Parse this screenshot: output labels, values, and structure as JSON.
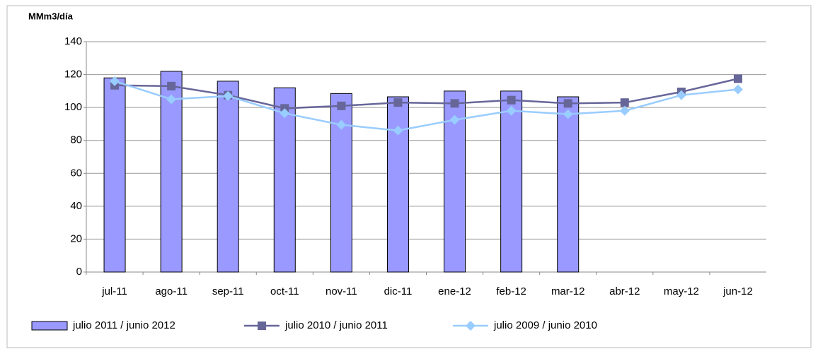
{
  "chart_data": {
    "type": "bar",
    "y_label": "MMm3/día",
    "categories": [
      "jul-11",
      "ago-11",
      "sep-11",
      "oct-11",
      "nov-11",
      "dic-11",
      "ene-12",
      "feb-12",
      "mar-12",
      "abr-12",
      "may-12",
      "jun-12"
    ],
    "series": [
      {
        "name": "julio 2011 / junio 2012",
        "type": "bar",
        "color": "#9999ff",
        "values": [
          118,
          122,
          116,
          112,
          108.5,
          106.5,
          110,
          110,
          106.5,
          null,
          null,
          null
        ]
      },
      {
        "name": "julio 2010 / junio 2011",
        "type": "line",
        "marker": "square",
        "color": "#666699",
        "values": [
          113.5,
          113,
          107.5,
          99.5,
          101,
          103,
          102.5,
          104.5,
          102.5,
          103,
          109.5,
          117.5
        ]
      },
      {
        "name": "julio 2009 / junio 2010",
        "type": "line",
        "marker": "diamond",
        "color": "#99ccff",
        "values": [
          116,
          105,
          107,
          96.5,
          89.5,
          86,
          92.5,
          98,
          96,
          98,
          107.5,
          111
        ]
      }
    ],
    "ylim": [
      0,
      140
    ],
    "yticks": [
      0,
      20,
      40,
      60,
      80,
      100,
      120,
      140
    ],
    "grid": true,
    "legend": "bottom"
  }
}
